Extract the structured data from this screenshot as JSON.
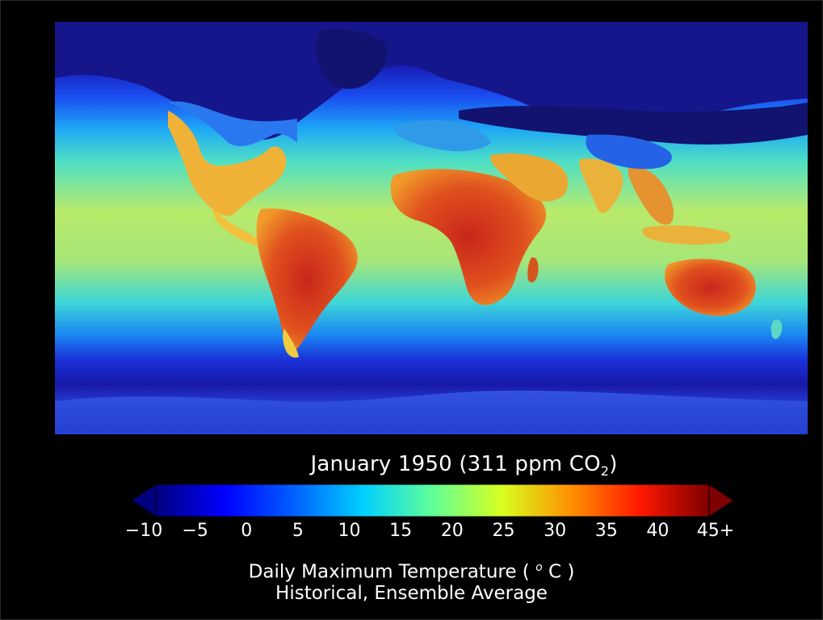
{
  "title": {
    "prefix": "January 1950 (311 ppm CO",
    "sub": "2",
    "suffix": ")"
  },
  "colorbar": {
    "ticks": [
      "−10",
      "−5",
      "0",
      "5",
      "10",
      "15",
      "20",
      "25",
      "30",
      "35",
      "40",
      "45+"
    ],
    "min": -10,
    "max": 45,
    "colormap": [
      "#00007f",
      "#0000ff",
      "#0080ff",
      "#00ffff",
      "#80ff80",
      "#ffff00",
      "#ff8000",
      "#ff0000",
      "#7f0000"
    ]
  },
  "labels": {
    "line1_prefix": "Daily Maximum Temperature ( ",
    "line1_sup": "o",
    "line1_suffix": " C )",
    "line2": "Historical, Ensemble Average"
  },
  "colors": {
    "polar": "#1a1aa8",
    "ocean_cold": "#1f6bff",
    "ocean_mid": "#27d0e8",
    "ocean_warm": "#9ee86a",
    "land_hot": "#d8431c",
    "land_warm": "#f0a12a",
    "land_cold": "#14148a"
  }
}
